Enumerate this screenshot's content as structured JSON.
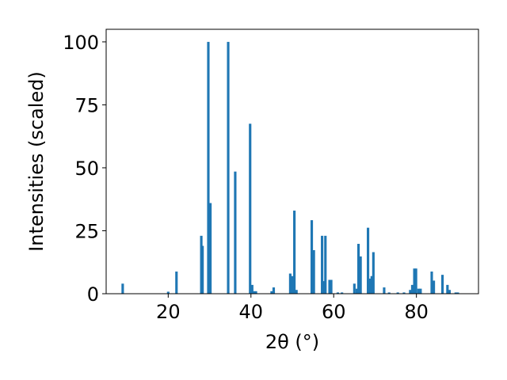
{
  "chart_data": {
    "type": "bar",
    "title": "",
    "xlabel": "2θ (°)",
    "ylabel": "Intensities (scaled)",
    "xlim": [
      5,
      95
    ],
    "ylim": [
      0,
      105
    ],
    "xticks": [
      20,
      40,
      60,
      80
    ],
    "yticks": [
      0,
      25,
      50,
      75,
      100
    ],
    "grid": false,
    "legend": "none",
    "bar_color": "#1f77b4",
    "bar_width": 0.6,
    "x": [
      9,
      20,
      22,
      28,
      28.3,
      29.7,
      30.2,
      34.5,
      36.2,
      39.8,
      40.3,
      40.7,
      41.2,
      45,
      45.5,
      49.5,
      50,
      50.5,
      51,
      54.7,
      55.2,
      57.2,
      57.6,
      58,
      59,
      59.4,
      61,
      62,
      65,
      65.6,
      66,
      66.5,
      68.3,
      68.7,
      69.2,
      69.6,
      72.2,
      73.4,
      75.5,
      77,
      78.5,
      79,
      79.5,
      79.9,
      80.5,
      81,
      83.7,
      84.2,
      86.3,
      87.5,
      88,
      89.5,
      90
    ],
    "values": [
      4,
      0.8,
      8.8,
      23,
      19,
      100,
      36,
      100,
      48.5,
      67.5,
      3.5,
      1,
      1,
      1,
      2.5,
      8,
      7,
      33,
      1.5,
      29.2,
      17.3,
      23,
      5,
      23,
      5.5,
      5.5,
      0.5,
      0.5,
      4,
      2,
      19.8,
      14.8,
      26.2,
      6,
      7,
      16.5,
      2.5,
      0.5,
      0.5,
      0.5,
      1.5,
      3.5,
      10,
      10,
      2,
      2,
      8.8,
      5.2,
      7.5,
      3.5,
      1.5,
      0.5,
      0.5
    ]
  }
}
